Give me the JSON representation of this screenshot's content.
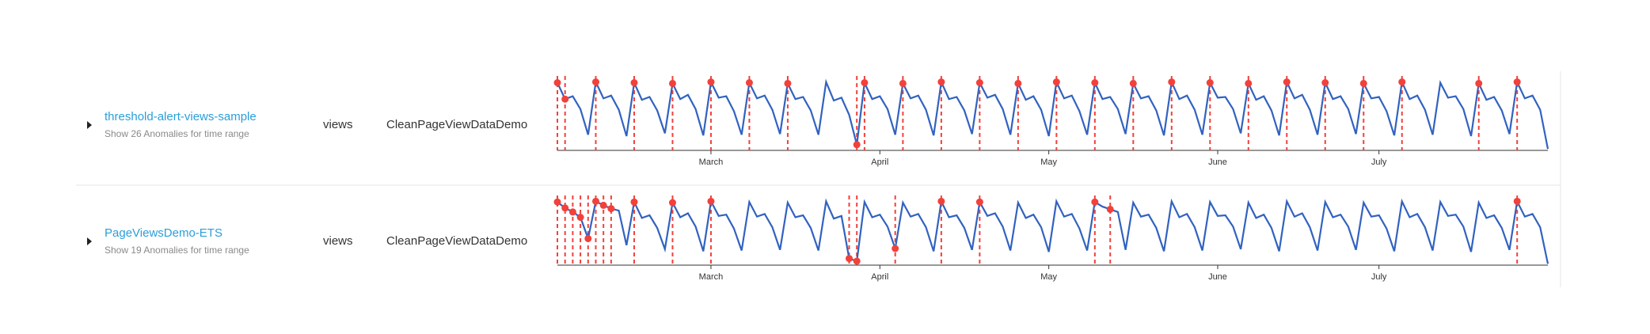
{
  "rows": [
    {
      "name": "threshold-alert-views-sample",
      "subtitle": "Show 26 Anomalies for time range",
      "metric": "views",
      "dataset": "CleanPageViewDataDemo",
      "chart": {
        "type": "line",
        "color": "#3162c0",
        "anomaly_color": "#f2413a",
        "xlim": [
          0,
          129
        ],
        "ylim": [
          0,
          100
        ],
        "xticks": [
          {
            "value": 20,
            "label": "March"
          },
          {
            "value": 42,
            "label": "April"
          },
          {
            "value": 64,
            "label": "May"
          },
          {
            "value": 86,
            "label": "June"
          },
          {
            "value": 107,
            "label": "July"
          }
        ],
        "values": [
          95,
          72,
          76,
          58,
          22,
          96,
          73,
          77,
          57,
          20,
          95,
          71,
          75,
          56,
          24,
          94,
          72,
          78,
          58,
          21,
          96,
          74,
          76,
          55,
          22,
          95,
          73,
          77,
          57,
          23,
          94,
          72,
          75,
          56,
          22,
          96,
          70,
          74,
          50,
          8,
          95,
          72,
          76,
          58,
          22,
          94,
          73,
          77,
          57,
          21,
          96,
          72,
          75,
          56,
          23,
          95,
          74,
          78,
          58,
          22,
          94,
          71,
          76,
          57,
          20,
          96,
          73,
          77,
          55,
          22,
          95,
          72,
          75,
          58,
          23,
          94,
          73,
          76,
          56,
          21,
          96,
          72,
          77,
          57,
          22,
          95,
          74,
          75,
          58,
          24,
          94,
          71,
          76,
          56,
          21,
          96,
          73,
          78,
          57,
          22,
          95,
          72,
          76,
          58,
          23,
          94,
          73,
          75,
          55,
          21,
          96,
          72,
          77,
          57,
          22,
          95,
          74,
          76,
          58,
          20,
          94,
          71,
          75,
          56,
          23,
          96,
          73,
          77,
          57,
          2
        ],
        "anomalies": [
          0,
          1,
          5,
          10,
          15,
          20,
          25,
          30,
          39,
          40,
          45,
          50,
          55,
          60,
          65,
          70,
          75,
          80,
          85,
          90,
          95,
          100,
          105,
          110,
          120,
          125
        ]
      }
    },
    {
      "name": "PageViewsDemo-ETS",
      "subtitle": "Show 19 Anomalies for time range",
      "metric": "views",
      "dataset": "CleanPageViewDataDemo",
      "chart": {
        "type": "line",
        "color": "#3162c0",
        "anomaly_color": "#f2413a",
        "xlim": [
          0,
          129
        ],
        "ylim": [
          0,
          100
        ],
        "xticks": [
          {
            "value": 20,
            "label": "March"
          },
          {
            "value": 42,
            "label": "April"
          },
          {
            "value": 64,
            "label": "May"
          },
          {
            "value": 86,
            "label": "June"
          },
          {
            "value": 107,
            "label": "July"
          }
        ],
        "values": [
          95,
          86,
          80,
          72,
          40,
          96,
          90,
          85,
          82,
          30,
          95,
          71,
          75,
          56,
          24,
          94,
          72,
          78,
          58,
          21,
          96,
          74,
          76,
          55,
          22,
          95,
          73,
          77,
          57,
          23,
          94,
          72,
          75,
          56,
          22,
          96,
          70,
          74,
          10,
          6,
          95,
          72,
          76,
          58,
          25,
          94,
          73,
          77,
          57,
          21,
          96,
          72,
          75,
          56,
          23,
          95,
          74,
          78,
          58,
          22,
          94,
          71,
          76,
          57,
          20,
          96,
          73,
          77,
          55,
          22,
          95,
          88,
          84,
          80,
          23,
          94,
          73,
          76,
          56,
          21,
          96,
          72,
          77,
          57,
          22,
          95,
          74,
          75,
          58,
          24,
          94,
          71,
          76,
          56,
          21,
          96,
          73,
          78,
          57,
          22,
          95,
          72,
          76,
          58,
          23,
          94,
          73,
          75,
          55,
          21,
          96,
          72,
          77,
          57,
          22,
          95,
          74,
          76,
          58,
          20,
          94,
          71,
          75,
          56,
          23,
          96,
          73,
          77,
          57,
          2
        ],
        "anomalies": [
          0,
          1,
          2,
          3,
          4,
          5,
          6,
          7,
          10,
          15,
          20,
          38,
          39,
          44,
          50,
          55,
          70,
          72,
          125
        ]
      }
    }
  ]
}
